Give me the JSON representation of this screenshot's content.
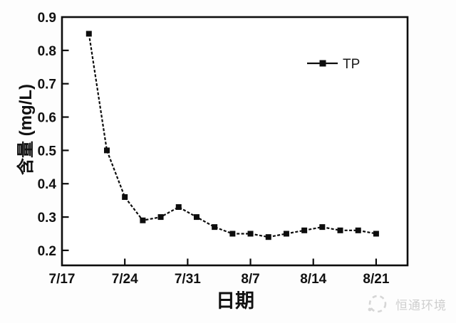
{
  "chart_data": {
    "type": "line",
    "title": "",
    "xlabel": "日期",
    "ylabel": "含量 (mg/L)",
    "x": [
      "7/20",
      "7/22",
      "7/24",
      "7/26",
      "7/28",
      "7/30",
      "8/1",
      "8/3",
      "8/5",
      "8/7",
      "8/9",
      "8/11",
      "8/13",
      "8/15",
      "8/17",
      "8/19",
      "8/21"
    ],
    "series": [
      {
        "name": "TP",
        "values": [
          0.85,
          0.5,
          0.36,
          0.29,
          0.3,
          0.33,
          0.3,
          0.27,
          0.25,
          0.25,
          0.24,
          0.25,
          0.26,
          0.27,
          0.26,
          0.26,
          0.25
        ],
        "color": "#0d0d0d",
        "marker": "square",
        "line_style": "dashed"
      }
    ],
    "xticks": [
      "7/17",
      "7/24",
      "7/31",
      "8/7",
      "8/14",
      "8/21"
    ],
    "yticks": [
      "0.2",
      "0.3",
      "0.4",
      "0.5",
      "0.6",
      "0.7",
      "0.8",
      "0.9"
    ],
    "ylim": [
      0.155,
      0.9
    ],
    "xlim_days": [
      0,
      38.5
    ],
    "grid": false,
    "legend": {
      "label": "TP",
      "position": "upper-right"
    }
  },
  "watermark": {
    "text": "恒通环境"
  }
}
